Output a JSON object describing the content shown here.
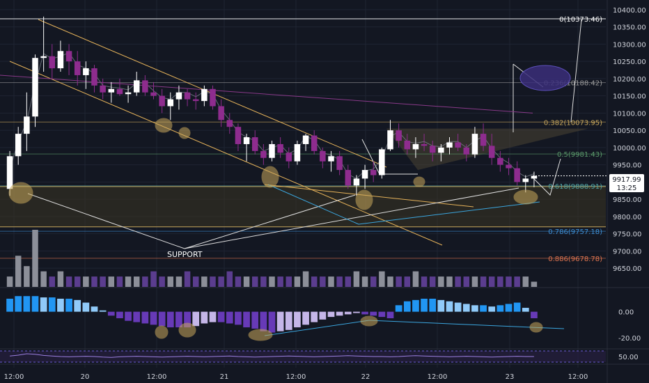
{
  "chart_data": {
    "type": "candlestick",
    "panes": [
      "price",
      "volume",
      "histogram",
      "oscillator"
    ],
    "x_tick_labels": [
      "12:00",
      "20",
      "12:00",
      "21",
      "12:00",
      "22",
      "12:00",
      "23",
      "12:00"
    ],
    "price_axis": {
      "tick_labels": [
        "10400.00",
        "10350.00",
        "10300.00",
        "10250.00",
        "10200.00",
        "10150.00",
        "10100.00",
        "10050.00",
        "10000.00",
        "9950.00",
        "9900.00",
        "9850.00",
        "9800.00",
        "9750.00",
        "9700.00",
        "9650.00"
      ],
      "range": [
        9620,
        10420
      ]
    },
    "current_price": {
      "value": "9917.99",
      "countdown": "13:25",
      "value_num": 9917.99
    },
    "histogram_axis": {
      "tick_labels": [
        "0.00",
        "-20.00"
      ],
      "range": [
        -28,
        18
      ]
    },
    "oscillator_axis": {
      "tick_labels": [
        "50.00"
      ],
      "range": [
        25,
        75
      ]
    },
    "fib_levels": [
      {
        "label": "0(10373.46)",
        "value": 10373.46,
        "color": "#ffffff"
      },
      {
        "label": "0.236(10188.42)",
        "value": 10188.42,
        "color": "#9b9b9b"
      },
      {
        "label": "0.382(10073.95)",
        "value": 10073.95,
        "color": "#c9a85c"
      },
      {
        "label": "0.5(9981.43)",
        "value": 9981.43,
        "color": "#5b9b6b"
      },
      {
        "label": "0.618(9888.91)",
        "value": 9888.91,
        "color": "#4fa3a3"
      },
      {
        "label": "0.786(9757.18)",
        "value": 9757.18,
        "color": "#3d8fd6"
      },
      {
        "label": "0.886(9678.78)",
        "value": 9678.78,
        "color": "#e0744f"
      }
    ],
    "annotations": [
      {
        "text": "SUPPORT"
      }
    ],
    "candles": [
      [
        9880,
        9990,
        9860,
        9975
      ],
      [
        9975,
        10060,
        9950,
        10040
      ],
      [
        10040,
        10160,
        9990,
        10090
      ],
      [
        10090,
        10270,
        10060,
        10260
      ],
      [
        10260,
        10380,
        10220,
        10265
      ],
      [
        10265,
        10300,
        10200,
        10230
      ],
      [
        10230,
        10310,
        10220,
        10280
      ],
      [
        10280,
        10300,
        10210,
        10250
      ],
      [
        10250,
        10280,
        10180,
        10210
      ],
      [
        10210,
        10250,
        10170,
        10230
      ],
      [
        10230,
        10240,
        10160,
        10180
      ],
      [
        10180,
        10200,
        10140,
        10160
      ],
      [
        10160,
        10190,
        10130,
        10170
      ],
      [
        10170,
        10200,
        10150,
        10155
      ],
      [
        10155,
        10180,
        10130,
        10160
      ],
      [
        10160,
        10220,
        10150,
        10195
      ],
      [
        10195,
        10210,
        10150,
        10160
      ],
      [
        10160,
        10190,
        10140,
        10150
      ],
      [
        10150,
        10170,
        10100,
        10120
      ],
      [
        10120,
        10160,
        10080,
        10140
      ],
      [
        10140,
        10180,
        10110,
        10160
      ],
      [
        10160,
        10170,
        10120,
        10140
      ],
      [
        10140,
        10160,
        10110,
        10135
      ],
      [
        10135,
        10180,
        10120,
        10170
      ],
      [
        10170,
        10180,
        10110,
        10120
      ],
      [
        10120,
        10140,
        10060,
        10080
      ],
      [
        10080,
        10100,
        10040,
        10060
      ],
      [
        10060,
        10070,
        9990,
        10010
      ],
      [
        10010,
        10040,
        9960,
        10030
      ],
      [
        10030,
        10050,
        9980,
        9990
      ],
      [
        9990,
        10010,
        9950,
        9970
      ],
      [
        9970,
        10020,
        9960,
        10010
      ],
      [
        10010,
        10030,
        9970,
        9985
      ],
      [
        9985,
        10000,
        9940,
        9960
      ],
      [
        9960,
        10020,
        9950,
        10010
      ],
      [
        10010,
        10040,
        9990,
        10035
      ],
      [
        10035,
        10050,
        9980,
        9990
      ],
      [
        9990,
        10000,
        9940,
        9960
      ],
      [
        9960,
        9990,
        9930,
        9975
      ],
      [
        9975,
        9990,
        9920,
        9935
      ],
      [
        9935,
        9950,
        9880,
        9890
      ],
      [
        9890,
        9920,
        9860,
        9910
      ],
      [
        9910,
        9950,
        9880,
        9935
      ],
      [
        9935,
        9960,
        9900,
        9920
      ],
      [
        9920,
        10000,
        9910,
        9995
      ],
      [
        9995,
        10080,
        9990,
        10050
      ],
      [
        10050,
        10070,
        10000,
        10020
      ],
      [
        10020,
        10040,
        9980,
        9995
      ],
      [
        9995,
        10030,
        9970,
        10010
      ],
      [
        10010,
        10040,
        9990,
        10005
      ],
      [
        10005,
        10020,
        9960,
        9985
      ],
      [
        9985,
        10010,
        9960,
        10000
      ],
      [
        10000,
        10030,
        9980,
        10015
      ],
      [
        10015,
        10040,
        9990,
        10000
      ],
      [
        10000,
        10010,
        9960,
        9980
      ],
      [
        9980,
        10060,
        9970,
        10040
      ],
      [
        10040,
        10070,
        9990,
        10005
      ],
      [
        10005,
        10040,
        9950,
        9970
      ],
      [
        9970,
        9990,
        9930,
        9950
      ],
      [
        9950,
        9970,
        9920,
        9940
      ],
      [
        9940,
        9960,
        9890,
        9900
      ],
      [
        9900,
        9920,
        9870,
        9910
      ],
      [
        9910,
        9930,
        9885,
        9918
      ]
    ],
    "volume": [
      2,
      6,
      4,
      11,
      3,
      2,
      3,
      2,
      2,
      2,
      2,
      2,
      2,
      2,
      2,
      2,
      2,
      3,
      2,
      2,
      2,
      3,
      2,
      2,
      2,
      2,
      3,
      2,
      2,
      2,
      2,
      2,
      2,
      2,
      2,
      3,
      2,
      2,
      2,
      2,
      2,
      3,
      2,
      2,
      3,
      2,
      2,
      2,
      3,
      2,
      2,
      2,
      2,
      2,
      2,
      2,
      2,
      2,
      2,
      2,
      2,
      2,
      1
    ],
    "histogram": [
      10,
      12,
      12,
      12,
      11,
      11,
      10,
      10,
      9,
      7,
      4,
      1,
      -3,
      -5,
      -7,
      -8,
      -9,
      -10,
      -11,
      -12,
      -12,
      -12,
      -11,
      -9,
      -8,
      -8,
      -9,
      -10,
      -12,
      -13,
      -15,
      -16,
      -15,
      -14,
      -12,
      -10,
      -8,
      -6,
      -4,
      -3,
      -2,
      -1,
      -2,
      -3,
      -4,
      -5,
      5,
      8,
      9,
      10,
      10,
      9,
      8,
      7,
      6,
      5,
      5,
      4,
      5,
      6,
      7,
      3,
      -5
    ],
    "oscillator": [
      52,
      55,
      60,
      58,
      54,
      52,
      50,
      49,
      50,
      51,
      50,
      48,
      47,
      49,
      50,
      51,
      50,
      49,
      48,
      49,
      50,
      51,
      50,
      49,
      50,
      51,
      52,
      50,
      49,
      48,
      49,
      50,
      51,
      52,
      51,
      50,
      49,
      50,
      51,
      52,
      53,
      52,
      51,
      50,
      50,
      49,
      50,
      52,
      53,
      52,
      51,
      50,
      49,
      50,
      51,
      50,
      49,
      48,
      49,
      50,
      51,
      50,
      50
    ]
  }
}
